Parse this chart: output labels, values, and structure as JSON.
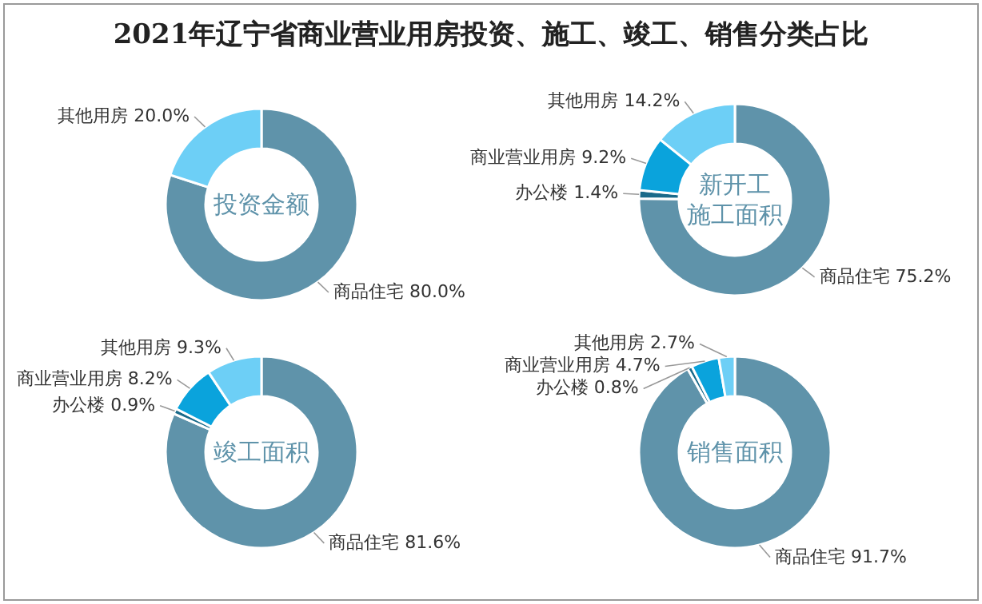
{
  "chart_data": [
    {
      "type": "donut",
      "title": "2021年辽宁省商业营业用房投资、施工、竣工、销售分类占比",
      "subtitle": "投资金额",
      "categories": [
        "商品住宅",
        "其他用房"
      ],
      "values": [
        80.0,
        20.0
      ],
      "value_labels": [
        "80.0%",
        "20.0%"
      ],
      "colors": [
        "#5f93aa",
        "#6dcff6"
      ]
    },
    {
      "type": "donut",
      "subtitle": "新开工施工面积",
      "categories": [
        "商品住宅",
        "办公楼",
        "商业营业用房",
        "其他用房"
      ],
      "values": [
        75.2,
        1.4,
        9.2,
        14.2
      ],
      "value_labels": [
        "75.2%",
        "1.4%",
        "9.2%",
        "14.2%"
      ],
      "colors": [
        "#5f93aa",
        "#1a6a8a",
        "#0aa3dc",
        "#6dcff6"
      ]
    },
    {
      "type": "donut",
      "subtitle": "竣工面积",
      "categories": [
        "商品住宅",
        "办公楼",
        "商业营业用房",
        "其他用房"
      ],
      "values": [
        81.6,
        0.9,
        8.2,
        9.3
      ],
      "value_labels": [
        "81.6%",
        "0.9%",
        "8.2%",
        "9.3%"
      ],
      "colors": [
        "#5f93aa",
        "#1a6a8a",
        "#0aa3dc",
        "#6dcff6"
      ]
    },
    {
      "type": "donut",
      "subtitle": "销售面积",
      "categories": [
        "商品住宅",
        "办公楼",
        "商业营业用房",
        "其他用房"
      ],
      "values": [
        91.7,
        0.8,
        4.7,
        2.7
      ],
      "value_labels": [
        "91.7%",
        "0.8%",
        "4.7%",
        "2.7%"
      ],
      "colors": [
        "#5f93aa",
        "#1a6a8a",
        "#0aa3dc",
        "#6dcff6"
      ]
    }
  ]
}
